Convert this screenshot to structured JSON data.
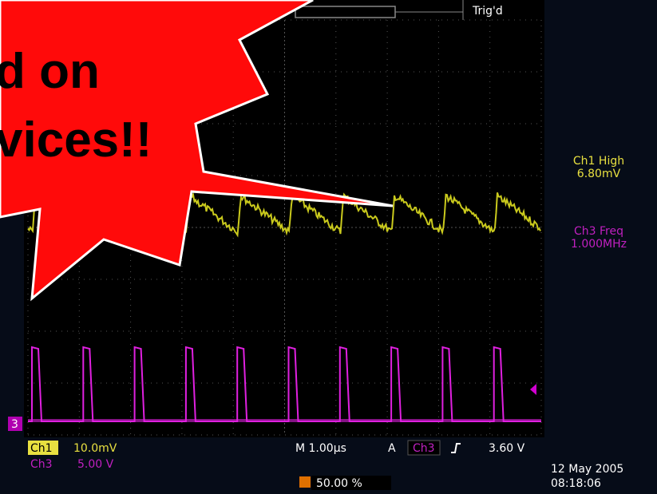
{
  "overlay": {
    "lines": [
      "d on",
      "vices!!"
    ]
  },
  "screen": {
    "trigger_status": "Trig'd",
    "channel_marker": "3",
    "measurements": [
      {
        "label": "Ch1 High",
        "value": "6.80mV"
      },
      {
        "label": "Ch3 Freq",
        "value": "1.000MHz"
      }
    ],
    "ch1": {
      "label": "Ch1",
      "scale": "10.0mV"
    },
    "ch3": {
      "label": "Ch3",
      "scale": "5.00 V"
    },
    "timebase": "M 1.00µs",
    "trigger": {
      "mode": "A",
      "source": "Ch3",
      "level": "3.60 V"
    },
    "trigger_position": "50.00 %",
    "date": "12 May 2005",
    "time": "08:18:06"
  }
}
